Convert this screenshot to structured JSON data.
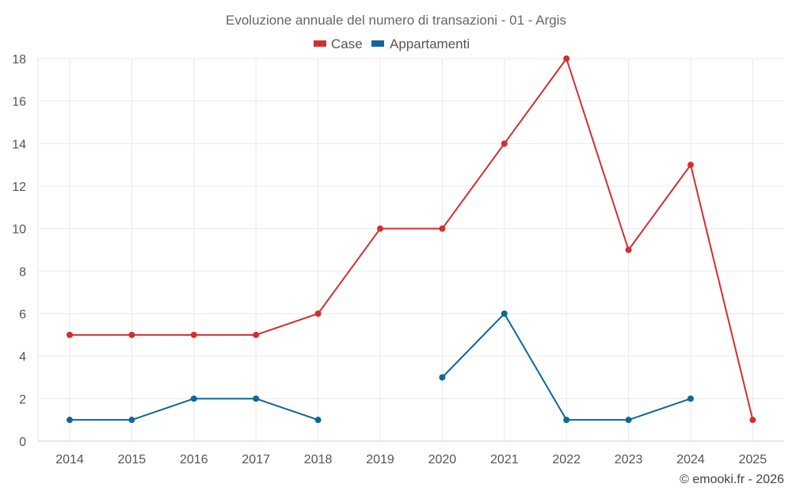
{
  "chart_data": {
    "type": "line",
    "title": "Evoluzione annuale del numero di transazioni - 01 - Argis",
    "categories": [
      "2014",
      "2015",
      "2016",
      "2017",
      "2018",
      "2019",
      "2020",
      "2021",
      "2022",
      "2023",
      "2024",
      "2025"
    ],
    "series": [
      {
        "name": "Case",
        "color": "#d32f2f",
        "values": [
          5,
          5,
          5,
          5,
          6,
          10,
          10,
          14,
          18,
          9,
          13,
          1
        ]
      },
      {
        "name": "Appartamenti",
        "color": "#0f6699",
        "values": [
          1,
          1,
          2,
          2,
          1,
          null,
          3,
          6,
          1,
          1,
          2,
          null
        ]
      }
    ],
    "ylim": [
      0,
      18
    ],
    "yticks": [
      0,
      2,
      4,
      6,
      8,
      10,
      12,
      14,
      16,
      18
    ],
    "xlabel": "",
    "ylabel": "",
    "grid": true,
    "legend_position": "top-center",
    "credit": "© emooki.fr - 2026"
  }
}
